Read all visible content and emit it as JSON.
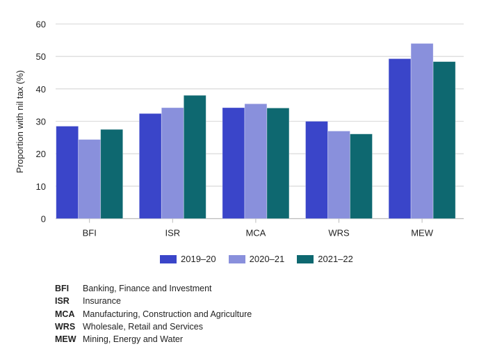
{
  "chart_data": {
    "type": "bar",
    "title": "",
    "xlabel": "",
    "ylabel": "Proportion with nil tax (%)",
    "ylim": [
      0,
      60
    ],
    "yticks": [
      0,
      10,
      20,
      30,
      40,
      50,
      60
    ],
    "grid": true,
    "legend_placement": "bottom",
    "categories": [
      "BFI",
      "ISR",
      "MCA",
      "WRS",
      "MEW"
    ],
    "series": [
      {
        "name": "2019–20",
        "color": "#3a45c9",
        "values": [
          28.5,
          32.4,
          34.2,
          30.0,
          49.3
        ]
      },
      {
        "name": "2020–21",
        "color": "#8990dc",
        "values": [
          24.4,
          34.2,
          35.4,
          27.0,
          54.0
        ]
      },
      {
        "name": "2021–22",
        "color": "#0e6870",
        "values": [
          27.5,
          38.0,
          34.1,
          26.1,
          48.4
        ]
      }
    ]
  },
  "abbreviations": [
    {
      "code": "BFI",
      "label": "Banking, Finance and Investment"
    },
    {
      "code": "ISR",
      "label": "Insurance"
    },
    {
      "code": "MCA",
      "label": "Manufacturing, Construction and Agriculture"
    },
    {
      "code": "WRS",
      "label": "Wholesale, Retail and Services"
    },
    {
      "code": "MEW",
      "label": "Mining, Energy and Water"
    }
  ]
}
